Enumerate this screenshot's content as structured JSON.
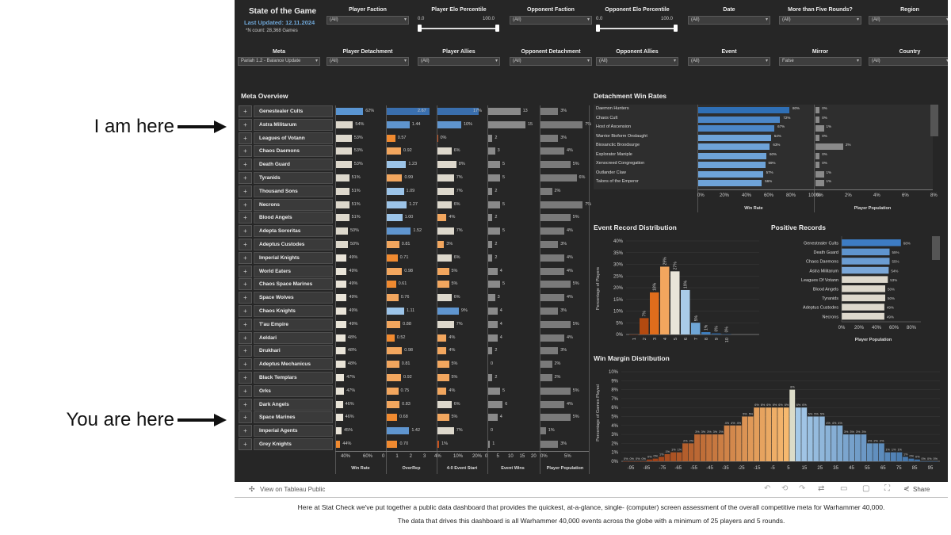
{
  "annotations": {
    "top": "I am here",
    "bottom": "You are here"
  },
  "header": {
    "title": "State of the Game",
    "last_updated": "Last Updated: 12.11.2024",
    "count": "*N count: 28,368 Games"
  },
  "filters_row1": [
    {
      "label": "Player Faction",
      "value": "(All)"
    },
    {
      "label": "Player Elo Percentile",
      "min": "0.0",
      "max": "100.0"
    },
    {
      "label": "Opponent Faction",
      "value": "(All)"
    },
    {
      "label": "Opponent Elo Percentile",
      "min": "0.0",
      "max": "100.0"
    },
    {
      "label": "Date",
      "value": "(All)"
    },
    {
      "label": "More than Five Rounds?",
      "value": "(All)"
    },
    {
      "label": "Region",
      "value": "(All)"
    }
  ],
  "filters_row2": [
    {
      "label": "Meta",
      "value": "Pariah 1.2 - Balance Update"
    },
    {
      "label": "Player Detachment",
      "value": "(All)"
    },
    {
      "label": "Player Allies",
      "value": "(All)"
    },
    {
      "label": "Opponent Detachment",
      "value": "(All)"
    },
    {
      "label": "Opponent Allies",
      "value": "(All)"
    },
    {
      "label": "Event",
      "value": "(All)"
    },
    {
      "label": "Mirror",
      "value": "False"
    },
    {
      "label": "Country",
      "value": "(All)"
    }
  ],
  "meta_overview": {
    "title": "Meta Overview",
    "columns": [
      "Win Rate",
      "OverRep",
      "4-0 Event Start",
      "Event Wins",
      "Player Population"
    ],
    "axis_ticks": {
      "winrate": [
        "40%",
        "60%"
      ],
      "overrep": [
        "0",
        "1",
        "2",
        "3"
      ],
      "fourzero": [
        "4%",
        "10%",
        "20%"
      ],
      "wins": [
        "0",
        "5",
        "10",
        "15",
        "20"
      ],
      "pop": [
        "0%",
        "5%"
      ]
    },
    "rows": [
      {
        "name": "Genestealer Cults",
        "wr": "62%",
        "wrv": 62,
        "or": "2.67",
        "orv": 2.67,
        "fz": "17%",
        "fzv": 17,
        "ew": "13",
        "ewv": 13,
        "pp": "3%",
        "ppv": 3
      },
      {
        "name": "Astra Militarum",
        "wr": "54%",
        "wrv": 54,
        "or": "1.44",
        "orv": 1.44,
        "fz": "10%",
        "fzv": 10,
        "ew": "15",
        "ewv": 15,
        "pp": "7%",
        "ppv": 7
      },
      {
        "name": "Leagues of Votann",
        "wr": "53%",
        "wrv": 53,
        "or": "0.57",
        "orv": 0.57,
        "fz": "0%",
        "fzv": 0,
        "ew": "2",
        "ewv": 2,
        "pp": "3%",
        "ppv": 3
      },
      {
        "name": "Chaos Daemons",
        "wr": "53%",
        "wrv": 53,
        "or": "0.92",
        "orv": 0.92,
        "fz": "6%",
        "fzv": 6,
        "ew": "3",
        "ewv": 3,
        "pp": "4%",
        "ppv": 4
      },
      {
        "name": "Death Guard",
        "wr": "53%",
        "wrv": 53,
        "or": "1.23",
        "orv": 1.23,
        "fz": "8%",
        "fzv": 8,
        "ew": "5",
        "ewv": 5,
        "pp": "5%",
        "ppv": 5
      },
      {
        "name": "Tyranids",
        "wr": "51%",
        "wrv": 51,
        "or": "0.99",
        "orv": 0.99,
        "fz": "7%",
        "fzv": 7,
        "ew": "5",
        "ewv": 5,
        "pp": "6%",
        "ppv": 6
      },
      {
        "name": "Thousand Sons",
        "wr": "51%",
        "wrv": 51,
        "or": "1.09",
        "orv": 1.09,
        "fz": "7%",
        "fzv": 7,
        "ew": "2",
        "ewv": 2,
        "pp": "2%",
        "ppv": 2
      },
      {
        "name": "Necrons",
        "wr": "51%",
        "wrv": 51,
        "or": "1.27",
        "orv": 1.27,
        "fz": "6%",
        "fzv": 6,
        "ew": "5",
        "ewv": 5,
        "pp": "7%",
        "ppv": 7
      },
      {
        "name": "Blood Angels",
        "wr": "51%",
        "wrv": 51,
        "or": "1.00",
        "orv": 1.0,
        "fz": "4%",
        "fzv": 4,
        "ew": "2",
        "ewv": 2,
        "pp": "5%",
        "ppv": 5
      },
      {
        "name": "Adepta Sororitas",
        "wr": "50%",
        "wrv": 50,
        "or": "1.52",
        "orv": 1.52,
        "fz": "7%",
        "fzv": 7,
        "ew": "5",
        "ewv": 5,
        "pp": "4%",
        "ppv": 4
      },
      {
        "name": "Adeptus Custodes",
        "wr": "50%",
        "wrv": 50,
        "or": "0.81",
        "orv": 0.81,
        "fz": "3%",
        "fzv": 3,
        "ew": "2",
        "ewv": 2,
        "pp": "3%",
        "ppv": 3
      },
      {
        "name": "Imperial Knights",
        "wr": "49%",
        "wrv": 49,
        "or": "0.71",
        "orv": 0.71,
        "fz": "6%",
        "fzv": 6,
        "ew": "2",
        "ewv": 2,
        "pp": "4%",
        "ppv": 4
      },
      {
        "name": "World Eaters",
        "wr": "49%",
        "wrv": 49,
        "or": "0.98",
        "orv": 0.98,
        "fz": "5%",
        "fzv": 5,
        "ew": "4",
        "ewv": 4,
        "pp": "4%",
        "ppv": 4
      },
      {
        "name": "Chaos Space Marines",
        "wr": "49%",
        "wrv": 49,
        "or": "0.61",
        "orv": 0.61,
        "fz": "5%",
        "fzv": 5,
        "ew": "5",
        "ewv": 5,
        "pp": "5%",
        "ppv": 5
      },
      {
        "name": "Space Wolves",
        "wr": "49%",
        "wrv": 49,
        "or": "0.76",
        "orv": 0.76,
        "fz": "6%",
        "fzv": 6,
        "ew": "3",
        "ewv": 3,
        "pp": "4%",
        "ppv": 4
      },
      {
        "name": "Chaos Knights",
        "wr": "49%",
        "wrv": 49,
        "or": "1.11",
        "orv": 1.11,
        "fz": "9%",
        "fzv": 9,
        "ew": "4",
        "ewv": 4,
        "pp": "3%",
        "ppv": 3
      },
      {
        "name": "T'au Empire",
        "wr": "49%",
        "wrv": 49,
        "or": "0.88",
        "orv": 0.88,
        "fz": "7%",
        "fzv": 7,
        "ew": "4",
        "ewv": 4,
        "pp": "5%",
        "ppv": 5
      },
      {
        "name": "Aeldari",
        "wr": "48%",
        "wrv": 48,
        "or": "0.52",
        "orv": 0.52,
        "fz": "4%",
        "fzv": 4,
        "ew": "4",
        "ewv": 4,
        "pp": "4%",
        "ppv": 4
      },
      {
        "name": "Drukhari",
        "wr": "48%",
        "wrv": 48,
        "or": "0.98",
        "orv": 0.98,
        "fz": "4%",
        "fzv": 4,
        "ew": "2",
        "ewv": 2,
        "pp": "3%",
        "ppv": 3
      },
      {
        "name": "Adeptus Mechanicus",
        "wr": "48%",
        "wrv": 48,
        "or": "0.81",
        "orv": 0.81,
        "fz": "5%",
        "fzv": 5,
        "ew": "0",
        "ewv": 0,
        "pp": "2%",
        "ppv": 2
      },
      {
        "name": "Black Templars",
        "wr": "47%",
        "wrv": 47,
        "or": "0.92",
        "orv": 0.92,
        "fz": "5%",
        "fzv": 5,
        "ew": "2",
        "ewv": 2,
        "pp": "2%",
        "ppv": 2
      },
      {
        "name": "Orks",
        "wr": "47%",
        "wrv": 47,
        "or": "0.75",
        "orv": 0.75,
        "fz": "4%",
        "fzv": 4,
        "ew": "5",
        "ewv": 5,
        "pp": "5%",
        "ppv": 5
      },
      {
        "name": "Dark Angels",
        "wr": "46%",
        "wrv": 46,
        "or": "0.83",
        "orv": 0.83,
        "fz": "6%",
        "fzv": 6,
        "ew": "6",
        "ewv": 6,
        "pp": "4%",
        "ppv": 4
      },
      {
        "name": "Space Marines",
        "wr": "46%",
        "wrv": 46,
        "or": "0.68",
        "orv": 0.68,
        "fz": "5%",
        "fzv": 5,
        "ew": "4",
        "ewv": 4,
        "pp": "5%",
        "ppv": 5
      },
      {
        "name": "Imperial Agents",
        "wr": "45%",
        "wrv": 45,
        "or": "1.42",
        "orv": 1.42,
        "fz": "7%",
        "fzv": 7,
        "ew": "0",
        "ewv": 0,
        "pp": "1%",
        "ppv": 1
      },
      {
        "name": "Grey Knights",
        "wr": "44%",
        "wrv": 44,
        "or": "0.70",
        "orv": 0.7,
        "fz": "1%",
        "fzv": 1,
        "ew": "1",
        "ewv": 1,
        "pp": "3%",
        "ppv": 3
      }
    ]
  },
  "detachment": {
    "title": "Detachment Win Rates",
    "rows": [
      {
        "name": "Daemon Hunters",
        "wr": "80%",
        "wrv": 80,
        "pop": "0%",
        "popv": 0.3
      },
      {
        "name": "Chaos Cult",
        "wr": "72%",
        "wrv": 72,
        "pop": "0%",
        "popv": 0.3
      },
      {
        "name": "Host of Ascension",
        "wr": "67%",
        "wrv": 67,
        "pop": "1%",
        "popv": 0.6
      },
      {
        "name": "Warrior Bioform Onslaught",
        "wr": "64%",
        "wrv": 64,
        "pop": "0%",
        "popv": 0.3
      },
      {
        "name": "Biosanctic Broodsurge",
        "wr": "63%",
        "wrv": 63,
        "pop": "2%",
        "popv": 2
      },
      {
        "name": "Explorator Maniple",
        "wr": "60%",
        "wrv": 60,
        "pop": "0%",
        "popv": 0.3
      },
      {
        "name": "Xenocreed Congregation",
        "wr": "59%",
        "wrv": 59,
        "pop": "0%",
        "popv": 0.3
      },
      {
        "name": "Outlander Claw",
        "wr": "57%",
        "wrv": 57,
        "pop": "1%",
        "popv": 0.6
      },
      {
        "name": "Talons of the Emperor",
        "wr": "56%",
        "wrv": 56,
        "pop": "1%",
        "popv": 0.6
      }
    ],
    "wr_ticks": [
      "0%",
      "20%",
      "40%",
      "60%",
      "80%",
      "100%"
    ],
    "pop_ticks": [
      "0%",
      "2%",
      "4%",
      "6%",
      "8%"
    ],
    "wr_label": "Win Rate",
    "pop_label": "Player Population"
  },
  "event_record": {
    "title": "Event Record Distribution",
    "ylabel": "Percentage of Players",
    "yticks": [
      "0%",
      "5%",
      "10%",
      "15%",
      "20%",
      "25%",
      "30%",
      "35%",
      "40%"
    ],
    "xticks": [
      "1",
      "2",
      "3",
      "4",
      "5",
      "6",
      "7",
      "8",
      "9",
      "10"
    ],
    "bars": [
      {
        "v": 0,
        "label": "",
        "c": "#7a2a05"
      },
      {
        "v": 7,
        "label": "7%",
        "c": "#b34a10"
      },
      {
        "v": 18,
        "label": "18%",
        "c": "#e06d1c"
      },
      {
        "v": 29,
        "label": "29%",
        "c": "#f2a65e"
      },
      {
        "v": 27,
        "label": "27%",
        "c": "#e8e4d8"
      },
      {
        "v": 19,
        "label": "19%",
        "c": "#a9cbe8"
      },
      {
        "v": 5,
        "label": "5%",
        "c": "#6fa6d6"
      },
      {
        "v": 1,
        "label": "1%",
        "c": "#3f7fbf"
      },
      {
        "v": 0.5,
        "label": "0%",
        "c": "#2c5f94"
      },
      {
        "v": 0.2,
        "label": "0%",
        "c": "#1e4a7a"
      }
    ]
  },
  "positive_records": {
    "title": "Positive Records",
    "rows": [
      {
        "name": "Genestealer Cults",
        "v": 68,
        "label": "68%",
        "c": "#3d7cc4"
      },
      {
        "name": "Death Guard",
        "v": 55,
        "label": "55%",
        "c": "#5f95cf"
      },
      {
        "name": "Chaos Daemons",
        "v": 55,
        "label": "55%",
        "c": "#6b9dd3"
      },
      {
        "name": "Astra Militarum",
        "v": 54,
        "label": "54%",
        "c": "#7aa7d8"
      },
      {
        "name": "Leagues Of Votann",
        "v": 53,
        "label": "53%",
        "c": "#ddd8cc"
      },
      {
        "name": "Blood Angels",
        "v": 50,
        "label": "50%",
        "c": "#ddd8cc"
      },
      {
        "name": "Tyranids",
        "v": 50,
        "label": "50%",
        "c": "#ddd8cc"
      },
      {
        "name": "Adeptus Custodes",
        "v": 49,
        "label": "49%",
        "c": "#ddd8cc"
      },
      {
        "name": "Necrons",
        "v": 49,
        "label": "49%",
        "c": "#ddd8cc"
      }
    ],
    "ticks": [
      "0%",
      "20%",
      "40%",
      "60%",
      "80%"
    ],
    "xlabel": "Player Population"
  },
  "win_margin": {
    "title": "Win Margin Distribution",
    "ylabel": "Percentage of Games Played",
    "yticks": [
      "0%",
      "1%",
      "2%",
      "3%",
      "4%",
      "5%",
      "6%",
      "7%",
      "8%",
      "9%",
      "10%"
    ],
    "xticks": [
      "-95",
      "-85",
      "-75",
      "-65",
      "-55",
      "-45",
      "-35",
      "-25",
      "-15",
      "-5",
      "5",
      "15",
      "25",
      "35",
      "45",
      "55",
      "65",
      "75",
      "85",
      "95"
    ],
    "values": [
      0,
      0,
      0,
      0,
      0.2,
      0.3,
      0.5,
      0.8,
      1,
      1,
      2,
      2,
      3,
      3,
      3,
      3,
      3,
      4,
      4,
      4,
      5,
      5,
      6,
      6,
      6,
      6,
      6,
      6,
      8,
      6,
      6,
      5,
      5,
      5,
      4,
      4,
      4,
      3,
      3,
      3,
      3,
      2,
      2,
      2,
      1,
      1,
      1,
      0.5,
      0.3,
      0.2,
      0,
      0,
      0
    ],
    "labels": [
      "0%",
      "0%",
      "0%",
      "0%",
      "0%",
      "0%",
      "1%",
      "1%",
      "1%",
      "1%",
      "2%",
      "2%",
      "3%",
      "3%",
      "3%",
      "3%",
      "3%",
      "4%",
      "4%",
      "4%",
      "5%",
      "5%",
      "6%",
      "6%",
      "6%",
      "6%",
      "6%",
      "6%",
      "8%",
      "6%",
      "6%",
      "5%",
      "5%",
      "5%",
      "4%",
      "4%",
      "4%",
      "3%",
      "3%",
      "3%",
      "3%",
      "2%",
      "2%",
      "2%",
      "1%",
      "1%",
      "1%",
      "1%",
      "0%",
      "0%",
      "0%",
      "0%",
      "0%"
    ]
  },
  "toolbar": {
    "view_on": "View on Tableau Public",
    "share": "Share"
  },
  "footer": {
    "line1": "Here at Stat Check we've put together a public data dashboard that provides the quickest, at-a-glance, single- (computer) screen assessment of the overall competitive meta for Warhammer 40,000.",
    "line2": "The data that drives this dashboard is all Warhammer 40,000 events across the globe with a minimum of 25 players and 5 rounds."
  },
  "colors": {
    "orange_dark": "#c8501a",
    "orange": "#f08a30",
    "cream": "#e0dbcf",
    "blue_light": "#9cc4e8",
    "blue": "#4c87c8",
    "blue_dark": "#2f5f9a",
    "grey": "#8a8a8a",
    "bg": "#262626"
  }
}
